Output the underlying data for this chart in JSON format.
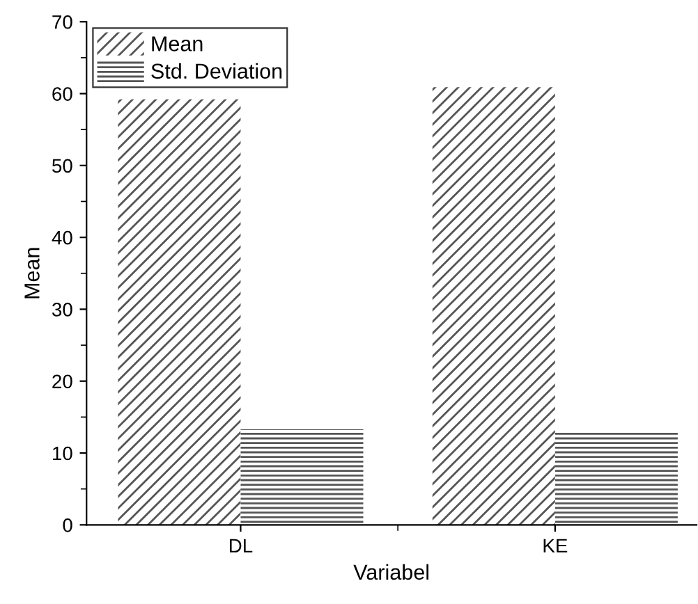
{
  "chart_data": {
    "type": "bar",
    "xlabel": "Variabel",
    "ylabel": "Mean",
    "categories": [
      "DL",
      "KE"
    ],
    "series": [
      {
        "name": "Mean",
        "color": "#555555",
        "values": [
          59.2,
          60.9
        ]
      },
      {
        "name": "Std. Deviation",
        "color": "#555555",
        "values": [
          13.3,
          13.2
        ]
      }
    ],
    "ylim": [
      0,
      70
    ],
    "yticks": [
      0,
      10,
      20,
      30,
      40,
      50,
      60,
      70
    ],
    "grid": false,
    "legend": "top left"
  }
}
